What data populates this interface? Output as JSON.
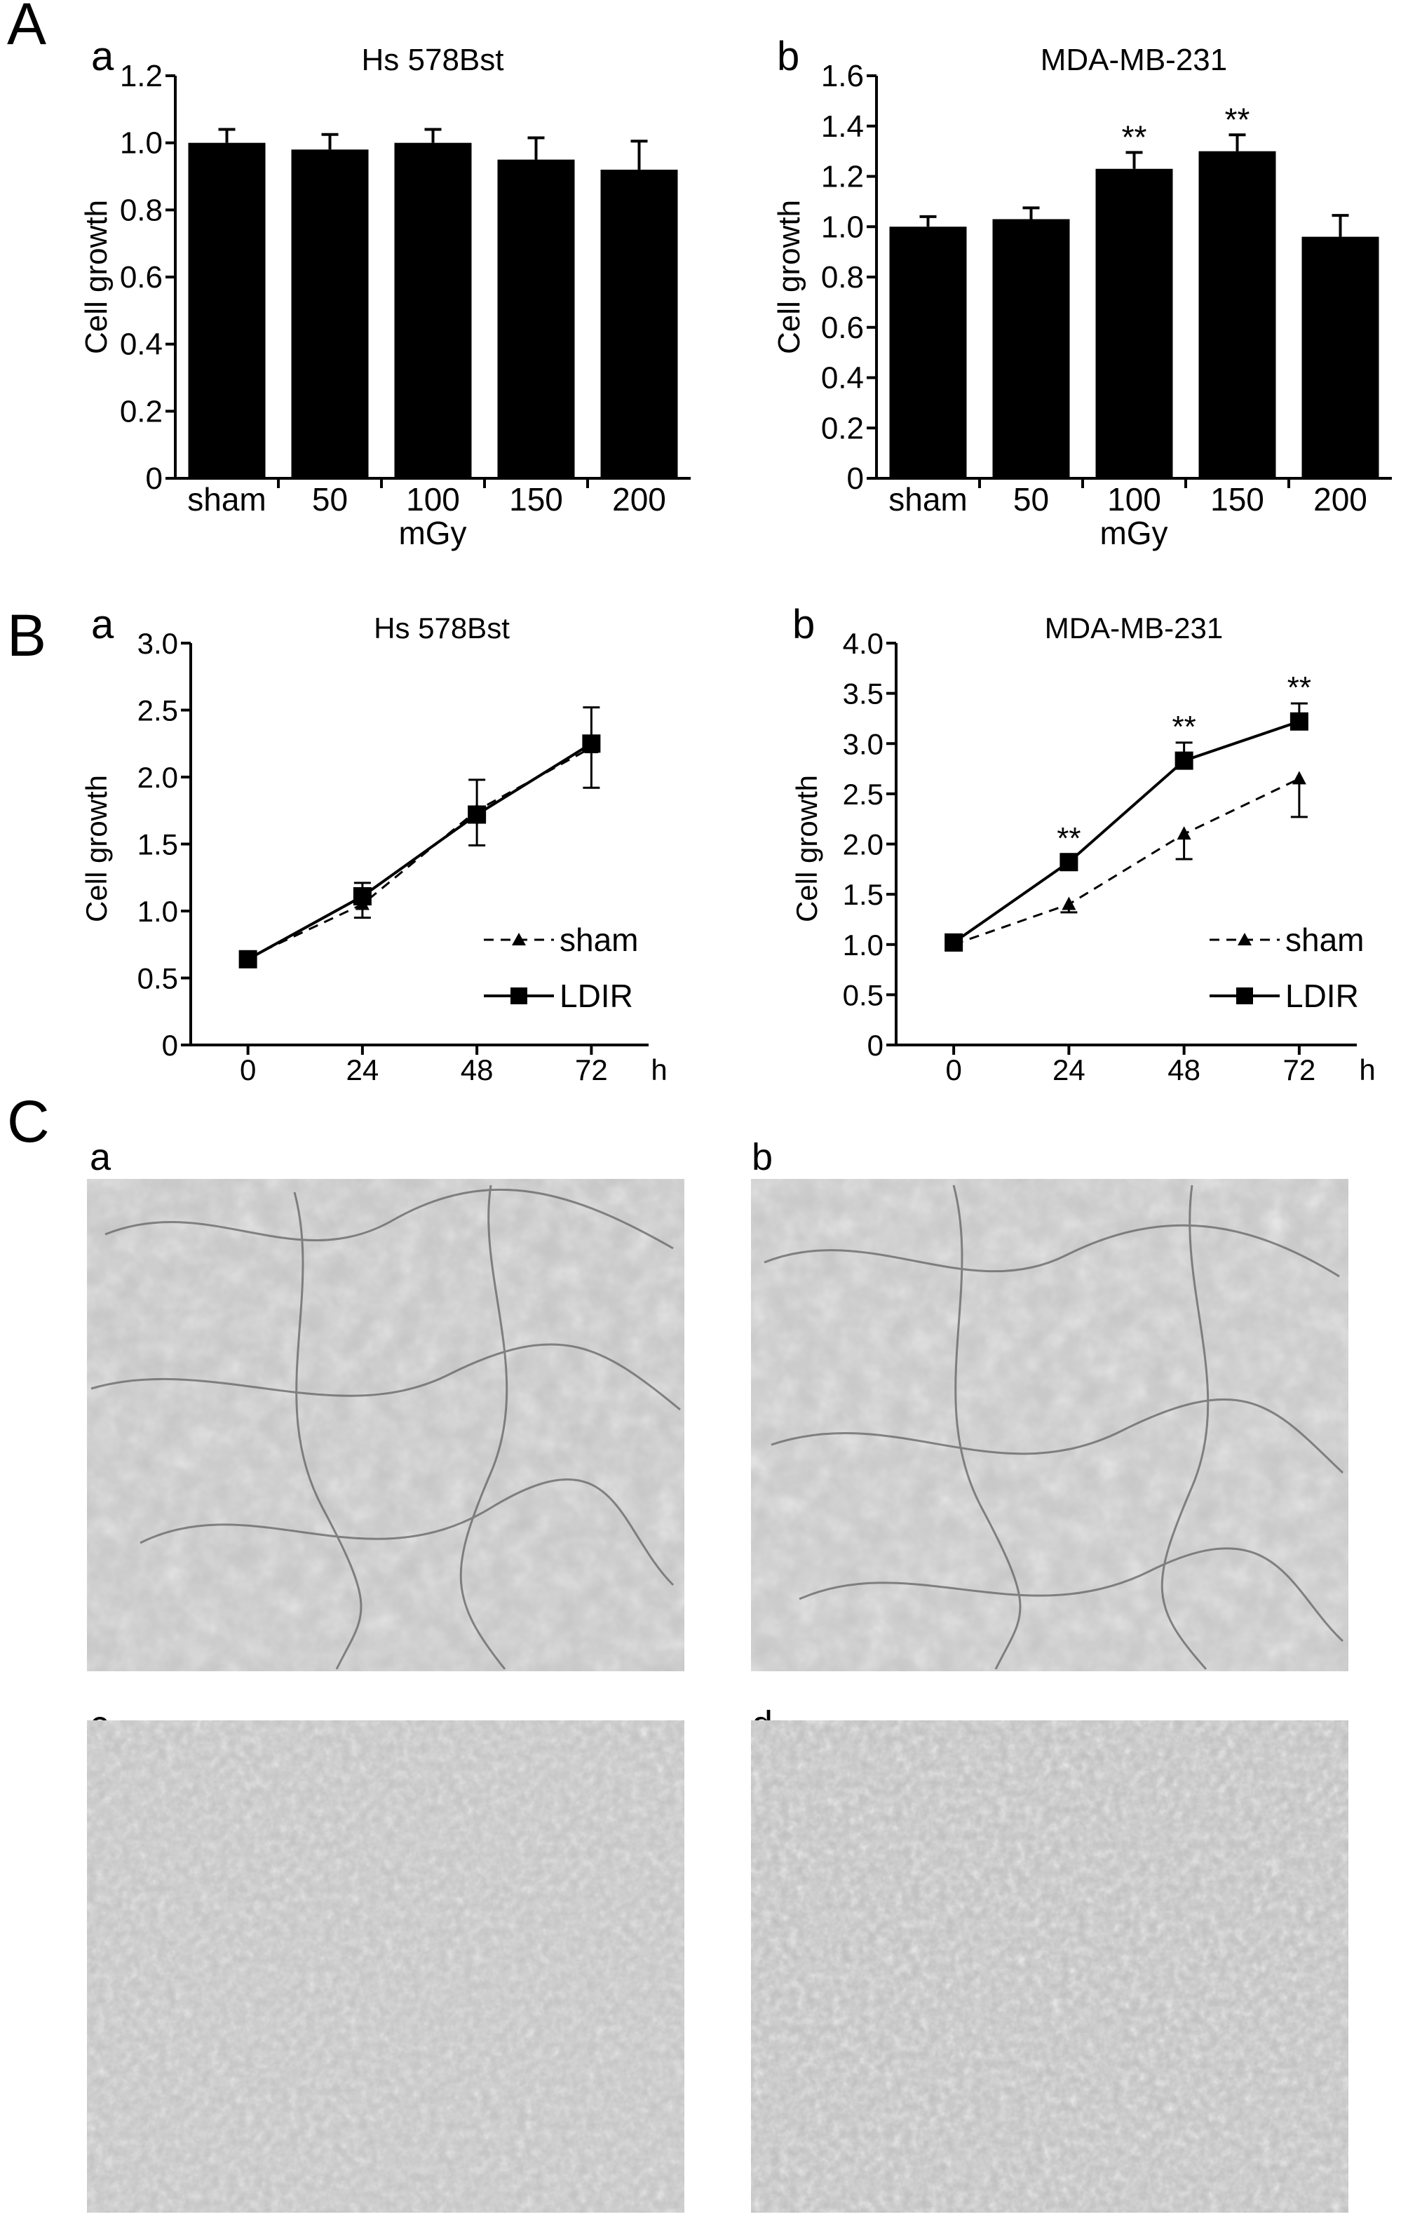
{
  "panels": {
    "A": {
      "letter": "A"
    },
    "B": {
      "letter": "B"
    },
    "C": {
      "letter": "C",
      "images": [
        {
          "sub": "a",
          "description": ""
        },
        {
          "sub": "b",
          "description": ""
        },
        {
          "sub": "c",
          "description": ""
        },
        {
          "sub": "d",
          "description": ""
        }
      ]
    }
  },
  "colors": {
    "bar": "#000000",
    "axis": "#000000",
    "micrograph_bg": "#c3c3c3"
  },
  "chart_data": [
    {
      "id": "Aa",
      "sub": "a",
      "type": "bar",
      "title": "Hs 578Bst",
      "categories": [
        "sham",
        "50",
        "100",
        "150",
        "200"
      ],
      "values": [
        1.0,
        0.98,
        1.0,
        0.95,
        0.92
      ],
      "errors": [
        0.04,
        0.045,
        0.04,
        0.065,
        0.085
      ],
      "significance": [
        "",
        "",
        "",
        "",
        ""
      ],
      "xlabel": "mGy",
      "ylabel": "Cell growth",
      "ylim": [
        0,
        1.2
      ],
      "yticks": [
        "0",
        "0.2",
        "0.4",
        "0.6",
        "0.8",
        "1.0",
        "1.2"
      ]
    },
    {
      "id": "Ab",
      "sub": "b",
      "type": "bar",
      "title": "MDA-MB-231",
      "categories": [
        "sham",
        "50",
        "100",
        "150",
        "200"
      ],
      "values": [
        1.0,
        1.03,
        1.23,
        1.3,
        0.96
      ],
      "errors": [
        0.04,
        0.045,
        0.065,
        0.065,
        0.085
      ],
      "significance": [
        "",
        "",
        "**",
        "**",
        ""
      ],
      "xlabel": "mGy",
      "ylabel": "Cell growth",
      "ylim": [
        0,
        1.6
      ],
      "yticks": [
        "0",
        "0.2",
        "0.4",
        "0.6",
        "0.8",
        "1.0",
        "1.2",
        "1.4",
        "1.6"
      ]
    },
    {
      "id": "Ba",
      "sub": "a",
      "type": "line",
      "title": "Hs 578Bst",
      "x": [
        0,
        24,
        48,
        72
      ],
      "xticks": [
        "0",
        "24",
        "48",
        "72"
      ],
      "xlabel": "h",
      "ylabel": "Cell growth",
      "ylim": [
        0,
        3.0
      ],
      "yticks": [
        "0",
        "0.5",
        "1.0",
        "1.5",
        "2.0",
        "2.5",
        "3.0"
      ],
      "legend": "bottom-right",
      "series": [
        {
          "name": "sham",
          "style": "dashed",
          "marker": "triangle",
          "values": [
            0.65,
            1.05,
            1.75,
            2.22
          ],
          "errors": [
            0.05,
            0.1,
            0.26,
            0.3
          ],
          "significance": [
            "",
            "",
            "",
            ""
          ]
        },
        {
          "name": "LDIR",
          "style": "solid",
          "marker": "square",
          "values": [
            0.64,
            1.11,
            1.72,
            2.25
          ],
          "errors": [
            0.05,
            0.1,
            0.26,
            0.27
          ],
          "significance": [
            "",
            "",
            "",
            ""
          ]
        }
      ]
    },
    {
      "id": "Bb",
      "sub": "b",
      "type": "line",
      "title": "MDA-MB-231",
      "x": [
        0,
        24,
        48,
        72
      ],
      "xticks": [
        "0",
        "24",
        "48",
        "72"
      ],
      "xlabel": "h",
      "ylabel": "Cell growth",
      "ylim": [
        0,
        4.0
      ],
      "yticks": [
        "0",
        "0.5",
        "1.0",
        "1.5",
        "2.0",
        "2.5",
        "3.0",
        "3.5",
        "4.0"
      ],
      "legend": "bottom-right",
      "series": [
        {
          "name": "sham",
          "style": "dashed",
          "marker": "triangle",
          "values": [
            1.0,
            1.4,
            2.1,
            2.65
          ],
          "errors": [
            0.04,
            0.08,
            0.25,
            0.38
          ],
          "significance": [
            "",
            "",
            "",
            ""
          ]
        },
        {
          "name": "LDIR",
          "style": "solid",
          "marker": "square",
          "values": [
            1.02,
            1.82,
            2.83,
            3.22
          ],
          "errors": [
            0.04,
            0.08,
            0.18,
            0.18
          ],
          "significance": [
            "",
            "**",
            "**",
            "**"
          ]
        }
      ]
    }
  ]
}
